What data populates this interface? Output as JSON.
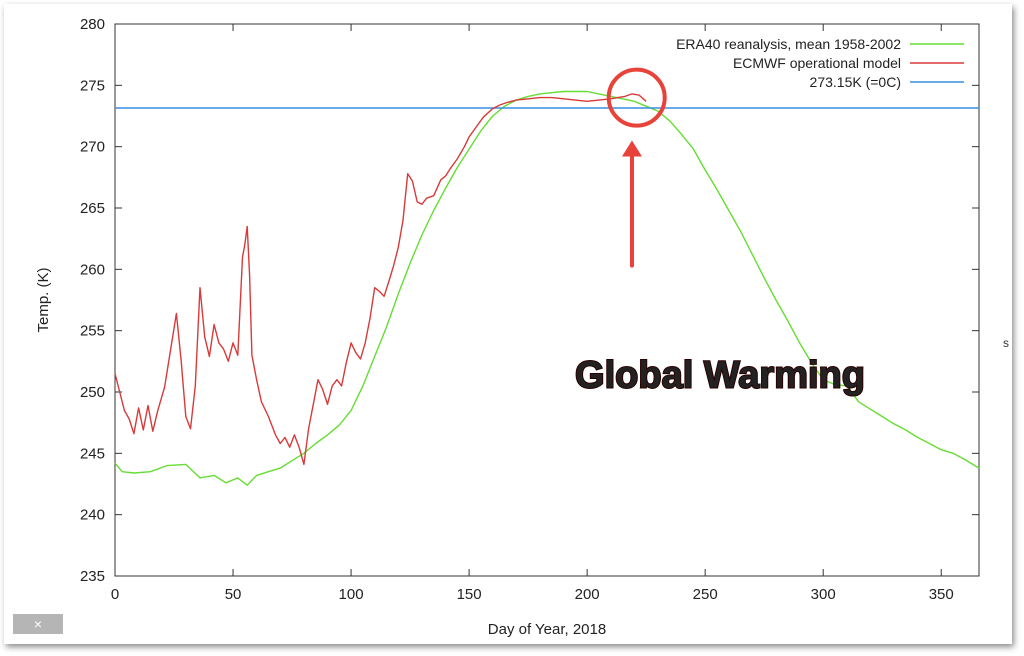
{
  "colors": {
    "era40": "#66dd33",
    "ecmwf": "#d83a3a",
    "freezing": "#3a8de0",
    "annotation": "#e8433a"
  },
  "overlay": {
    "close_symbol": "×",
    "close_icon": "close-icon",
    "edge_glyph": "s"
  },
  "chart_data": {
    "type": "line",
    "title": "",
    "xlabel": "Day of Year, 2018",
    "ylabel": "Temp. (K)",
    "xlim": [
      0,
      366
    ],
    "ylim": [
      235,
      280
    ],
    "xticks": [
      0,
      50,
      100,
      150,
      200,
      250,
      300,
      350
    ],
    "yticks": [
      235,
      240,
      245,
      250,
      255,
      260,
      265,
      270,
      275,
      280
    ],
    "grid": false,
    "legend_position": "top-right",
    "series": [
      {
        "name": "ERA40 reanalysis, mean 1958-2002",
        "color": "#66dd33",
        "x": [
          0,
          3,
          8,
          15,
          22,
          30,
          36,
          42,
          47,
          52,
          56,
          60,
          65,
          70,
          75,
          80,
          85,
          90,
          95,
          100,
          105,
          110,
          115,
          120,
          125,
          130,
          135,
          140,
          145,
          150,
          155,
          160,
          165,
          170,
          175,
          180,
          185,
          190,
          195,
          200,
          205,
          210,
          215,
          220,
          225,
          230,
          235,
          240,
          245,
          250,
          255,
          260,
          265,
          270,
          275,
          280,
          285,
          290,
          295,
          300,
          305,
          310,
          315,
          320,
          325,
          330,
          335,
          340,
          345,
          350,
          355,
          360,
          366
        ],
        "y": [
          244.2,
          243.5,
          243.4,
          243.5,
          244.0,
          244.1,
          243.0,
          243.2,
          242.6,
          243.0,
          242.4,
          243.2,
          243.5,
          243.8,
          244.4,
          245.0,
          245.8,
          246.5,
          247.3,
          248.5,
          250.5,
          252.9,
          255.3,
          258.0,
          260.5,
          262.8,
          264.8,
          266.6,
          268.3,
          269.8,
          271.3,
          272.5,
          273.3,
          273.8,
          274.1,
          274.3,
          274.4,
          274.5,
          274.5,
          274.5,
          274.3,
          274.1,
          273.9,
          273.7,
          273.3,
          272.9,
          272.1,
          271.0,
          269.8,
          268.1,
          266.5,
          264.8,
          263.1,
          261.2,
          259.3,
          257.5,
          255.8,
          254.0,
          252.4,
          251.0,
          250.6,
          250.5,
          249.2,
          248.6,
          248.0,
          247.4,
          246.9,
          246.3,
          245.8,
          245.3,
          245.0,
          244.5,
          243.8
        ]
      },
      {
        "name": "ECMWF operational model",
        "color": "#d83a3a",
        "x": [
          0,
          2,
          4,
          6,
          8,
          10,
          12,
          14,
          16,
          18,
          21,
          24,
          26,
          28,
          30,
          32,
          34,
          36,
          38,
          40,
          42,
          44,
          46,
          48,
          50,
          52,
          54,
          55,
          56,
          57,
          58,
          60,
          62,
          65,
          68,
          70,
          72,
          74,
          76,
          78,
          80,
          82,
          84,
          86,
          88,
          90,
          92,
          94,
          96,
          98,
          100,
          102,
          104,
          106,
          108,
          110,
          112,
          114,
          116,
          118,
          120,
          122,
          124,
          126,
          128,
          130,
          132,
          135,
          138,
          140,
          142,
          145,
          148,
          150,
          153,
          156,
          160,
          163,
          166,
          170,
          175,
          180,
          185,
          190,
          195,
          200,
          205,
          210,
          213,
          216,
          219,
          222,
          225
        ],
        "y": [
          251.5,
          250.0,
          248.5,
          247.8,
          246.6,
          248.7,
          246.9,
          248.9,
          246.8,
          248.4,
          250.4,
          254.0,
          256.4,
          252.6,
          248.0,
          247.0,
          250.5,
          258.5,
          254.5,
          252.9,
          255.5,
          254.0,
          253.5,
          252.5,
          254.0,
          253.0,
          261.0,
          262.0,
          263.5,
          259.5,
          253.0,
          251.0,
          249.2,
          248.0,
          246.5,
          245.8,
          246.3,
          245.5,
          246.5,
          245.5,
          244.1,
          247.0,
          249.0,
          251.0,
          250.2,
          249.0,
          250.5,
          251.0,
          250.5,
          252.4,
          254.0,
          253.2,
          252.7,
          254.0,
          256.0,
          258.5,
          258.2,
          257.8,
          259.0,
          260.3,
          261.8,
          264.0,
          267.8,
          267.2,
          265.5,
          265.3,
          265.8,
          266.0,
          267.3,
          267.6,
          268.2,
          269.0,
          270.0,
          270.8,
          271.6,
          272.4,
          273.1,
          273.4,
          273.6,
          273.8,
          273.9,
          274.0,
          274.0,
          273.9,
          273.8,
          273.7,
          273.8,
          273.9,
          274.0,
          274.1,
          274.3,
          274.2,
          273.7
        ]
      },
      {
        "name": "273.15K (=0C)",
        "color": "#3a8de0",
        "x": [
          0,
          366
        ],
        "y": [
          273.15,
          273.15
        ]
      }
    ],
    "annotations": [
      {
        "type": "text",
        "text": "Global Warming",
        "x": 150,
        "y": 251.5,
        "color": "#e8433a"
      },
      {
        "type": "arrow",
        "from": [
          219,
          260.3
        ],
        "to": [
          219,
          270.5
        ],
        "color": "#e8433a"
      },
      {
        "type": "circle",
        "center": [
          221,
          274.0
        ],
        "color": "#e8433a"
      }
    ]
  }
}
